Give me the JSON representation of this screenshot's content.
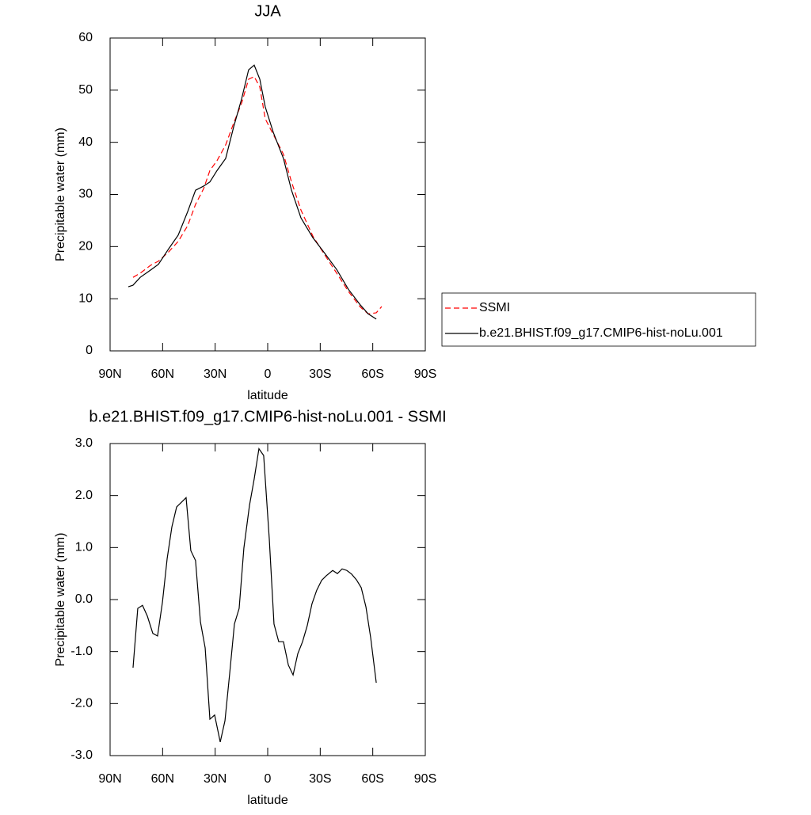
{
  "chart_data": [
    {
      "type": "line",
      "title": "JJA",
      "x_label": "latitude",
      "y_label": "Precipitable water (mm)",
      "x": [
        79.6,
        76.9,
        72.8,
        66.9,
        62.4,
        56.5,
        51.1,
        45.7,
        41.2,
        36.6,
        33.0,
        28.9,
        24.0,
        19.4,
        14.9,
        10.9,
        7.7,
        4.5,
        1.4,
        -3.2,
        -9.0,
        -13.6,
        -19.0,
        -25.8,
        -32.6,
        -39.4,
        -46.1,
        -52.9,
        -57.4,
        -62.0,
        -65.1
      ],
      "series": [
        {
          "name": "SSMI",
          "color": "#ff0000",
          "dashed": true,
          "values": [
            null,
            14.1,
            14.9,
            16.4,
            17.2,
            19.0,
            21.0,
            24.0,
            28.1,
            31.1,
            34.6,
            36.5,
            39.5,
            43.7,
            47.5,
            52.1,
            52.6,
            50.6,
            44.5,
            41.5,
            37.7,
            32.4,
            27.0,
            22.0,
            18.4,
            14.9,
            11.4,
            8.4,
            7.1,
            7.3,
            8.5
          ]
        },
        {
          "name": "b.e21.BHIST.f09_g17.CMIP6-hist-noLu.001",
          "color": "#000000",
          "dashed": false,
          "values": [
            12.3,
            12.6,
            14.1,
            15.5,
            16.6,
            19.6,
            22.2,
            26.7,
            30.8,
            31.6,
            32.4,
            34.6,
            36.9,
            43.0,
            48.3,
            53.9,
            54.8,
            52.1,
            46.8,
            41.9,
            36.9,
            30.8,
            25.5,
            21.7,
            18.7,
            15.6,
            11.8,
            8.8,
            7.1,
            6.1,
            null
          ]
        }
      ],
      "xlim": [
        90,
        -90
      ],
      "xticks": [
        {
          "value": 90,
          "label": "90N"
        },
        {
          "value": 60,
          "label": "60N"
        },
        {
          "value": 30,
          "label": "30N"
        },
        0,
        {
          "value": -30,
          "label": "30S"
        },
        {
          "value": -60,
          "label": "60S"
        },
        {
          "value": -90,
          "label": "90S"
        }
      ],
      "ylim": [
        0,
        60
      ],
      "yticks": [
        0,
        10,
        20,
        30,
        40,
        50,
        60
      ],
      "legend": "right"
    },
    {
      "type": "line",
      "title": "b.e21.BHIST.f09_g17.CMIP6-hist-noLu.001 - SSMI",
      "x_label": "latitude",
      "y_label": "Precipitable water (mm)",
      "x": [
        76.9,
        74.2,
        71.5,
        68.7,
        65.6,
        62.9,
        60.1,
        57.4,
        54.7,
        52.0,
        46.6,
        43.9,
        41.2,
        38.4,
        35.7,
        33.0,
        30.3,
        27.1,
        24.4,
        21.7,
        19.0,
        16.3,
        13.6,
        10.4,
        7.7,
        5.0,
        2.3,
        -0.9,
        -3.6,
        -6.3,
        -9.0,
        -11.8,
        -14.5,
        -17.2,
        -19.9,
        -22.6,
        -25.3,
        -28.0,
        -30.8,
        -33.5,
        -37.1,
        -39.8,
        -42.5,
        -45.2,
        -47.9,
        -50.7,
        -53.4,
        -56.1,
        -58.8,
        -62.0
      ],
      "series": [
        {
          "color": "#000000",
          "dashed": false,
          "values": [
            -1.31,
            -0.17,
            -0.11,
            -0.32,
            -0.65,
            -0.7,
            -0.05,
            0.79,
            1.4,
            1.78,
            1.96,
            0.94,
            0.75,
            -0.43,
            -0.93,
            -2.3,
            -2.22,
            -2.74,
            -2.33,
            -1.42,
            -0.47,
            -0.17,
            0.99,
            1.81,
            2.32,
            2.9,
            2.77,
            1.17,
            -0.47,
            -0.81,
            -0.81,
            -1.26,
            -1.45,
            -1.04,
            -0.81,
            -0.5,
            -0.08,
            0.18,
            0.37,
            0.46,
            0.56,
            0.5,
            0.59,
            0.56,
            0.49,
            0.38,
            0.23,
            -0.14,
            -0.73,
            -1.6
          ]
        }
      ],
      "xlim": [
        90,
        -90
      ],
      "xticks": [
        {
          "value": 90,
          "label": "90N"
        },
        {
          "value": 60,
          "label": "60N"
        },
        {
          "value": 30,
          "label": "30N"
        },
        0,
        {
          "value": -30,
          "label": "30S"
        },
        {
          "value": -60,
          "label": "60S"
        },
        {
          "value": -90,
          "label": "90S"
        }
      ],
      "ylim": [
        -3,
        3
      ],
      "yticks": [
        {
          "value": -3,
          "label": "-3.0"
        },
        {
          "value": -2,
          "label": "-2.0"
        },
        {
          "value": -1,
          "label": "-1.0"
        },
        {
          "value": 0,
          "label": "0.0"
        },
        {
          "value": 1,
          "label": "1.0"
        },
        {
          "value": 2,
          "label": "2.0"
        },
        {
          "value": 3,
          "label": "3.0"
        }
      ]
    }
  ]
}
